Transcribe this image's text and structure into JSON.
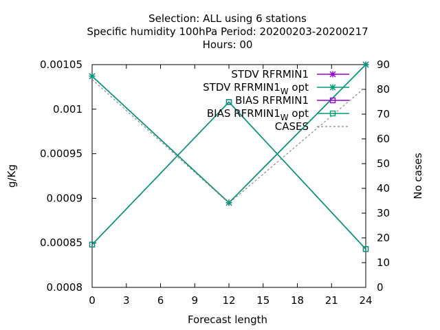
{
  "chart_data": {
    "type": "line",
    "title_lines": [
      "Selection: ALL using     6 stations",
      "Specific humidity 100hPa   Period: 20200203-20200217",
      "Hours:  00"
    ],
    "xlabel": "Forecast length",
    "ylabel": "g/Kg",
    "y2label": "No cases",
    "x": [
      0,
      12,
      24
    ],
    "xticks": [
      "0",
      "3",
      "6",
      "9",
      "12",
      "15",
      "18",
      "21",
      "24"
    ],
    "xlim": [
      0,
      24
    ],
    "ylim": [
      0.0008,
      0.00105
    ],
    "yticks": [
      "0.0008",
      "0.00085",
      "0.0009",
      "0.00095",
      "0.001",
      "0.00105"
    ],
    "y2lim": [
      0,
      90
    ],
    "y2ticks": [
      "0",
      "10",
      "20",
      "30",
      "40",
      "50",
      "60",
      "70",
      "80",
      "90"
    ],
    "legend_position": "top-right",
    "series": [
      {
        "name": "STDV RFRMIN1",
        "values": [
          0.001037,
          0.000895,
          0.00105
        ],
        "color": "#9400d3",
        "marker": "x-star",
        "axis": "left"
      },
      {
        "name": "STDV RFRMIN1",
        "name_sub": "W",
        "name_suffix": " opt",
        "values": [
          0.001037,
          0.000895,
          0.00105
        ],
        "color": "#009e73",
        "marker": "x-star",
        "axis": "left"
      },
      {
        "name": "BIAS RFRMIN1",
        "values": [
          0.000848,
          0.001008,
          0.000843
        ],
        "color": "#9400d3",
        "marker": "square",
        "axis": "left"
      },
      {
        "name": "BIAS RFRMIN1",
        "name_sub": "W",
        "name_suffix": " opt",
        "values": [
          0.000848,
          0.001008,
          0.000843
        ],
        "color": "#009e73",
        "marker": "square",
        "axis": "left"
      },
      {
        "name": "CASES",
        "values": [
          84,
          34,
          81
        ],
        "color": "#888888",
        "dashed": true,
        "axis": "right"
      }
    ]
  }
}
